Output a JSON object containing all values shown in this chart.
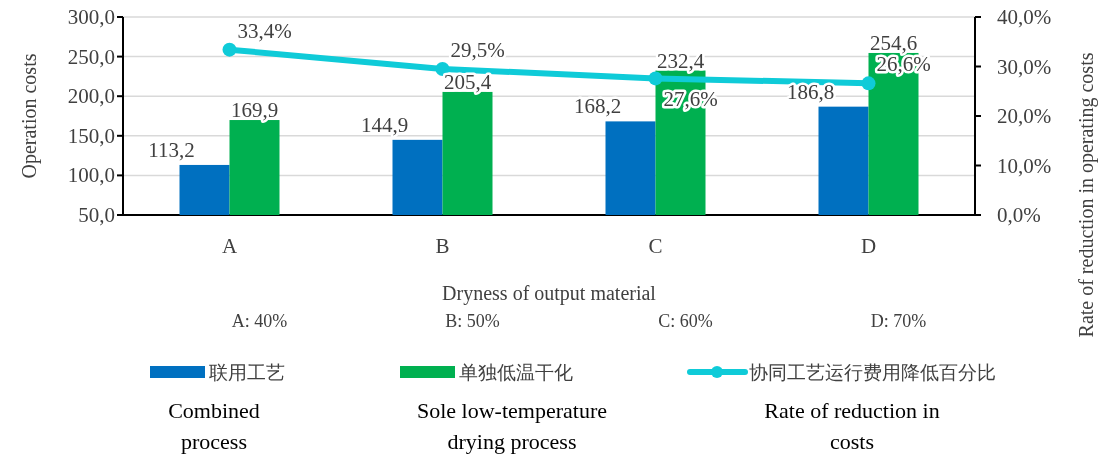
{
  "chart_data": {
    "type": "bar",
    "xlabel": "Dryness of output material",
    "ylabel": "Operation costs",
    "y2label": "Rate of reduction in operating costs",
    "categories": [
      "A",
      "B",
      "C",
      "D"
    ],
    "series": [
      {
        "name": "联用工艺",
        "color": "#0070c0",
        "values": [
          113.2,
          144.9,
          168.2,
          186.8
        ],
        "value_labels": [
          "113,2",
          "144,9",
          "168,2",
          "186,8"
        ]
      },
      {
        "name": "单独低温干化",
        "color": "#00b050",
        "values": [
          169.9,
          205.4,
          232.4,
          254.6
        ],
        "value_labels": [
          "169,9",
          "205,4",
          "232,4",
          "254,6"
        ]
      },
      {
        "name": "协同工艺运行费用降低百分比",
        "type": "line",
        "axis": "y2",
        "color": "#0fcbd8",
        "marker": "circle",
        "values": [
          33.4,
          29.5,
          27.6,
          26.6
        ],
        "value_labels": [
          "33,4%",
          "29,5%",
          "27,6%",
          "26,6%"
        ]
      }
    ],
    "ylim": [
      50,
      300
    ],
    "yticks": [
      {
        "value": 50,
        "label": "50,0"
      },
      {
        "value": 100,
        "label": "100,0"
      },
      {
        "value": 150,
        "label": "150,0"
      },
      {
        "value": 200,
        "label": "200,0"
      },
      {
        "value": 250,
        "label": "250,0"
      },
      {
        "value": 300,
        "label": "300,0"
      }
    ],
    "y2lim": [
      0,
      40
    ],
    "y2ticks": [
      {
        "value": 0,
        "label": "0,0%"
      },
      {
        "value": 10,
        "label": "10,0%"
      },
      {
        "value": 20,
        "label": "20,0%"
      },
      {
        "value": 30,
        "label": "30,0%"
      },
      {
        "value": 40,
        "label": "40,0%"
      }
    ],
    "grid": "y",
    "legend": "bottom",
    "annotations": [
      "A: 40%",
      "B: 50%",
      "C: 60%",
      "D: 70%",
      "Combined process",
      "Sole low-temperature drying process",
      "Rate of reduction in costs"
    ]
  }
}
